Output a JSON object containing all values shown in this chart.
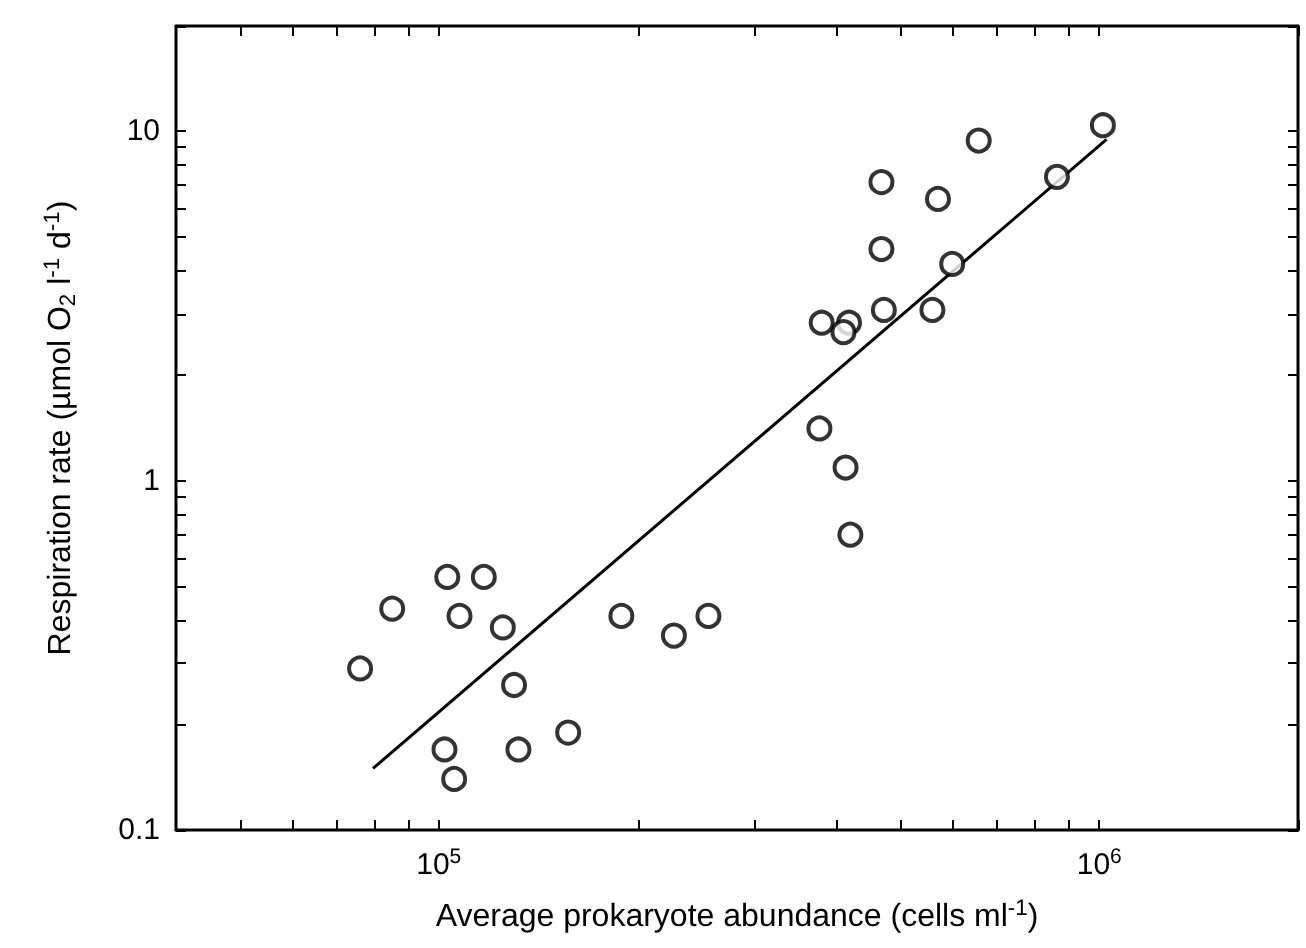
{
  "chart_data": {
    "type": "scatter",
    "xlabel": "Average prokaryote abundance (cells ml$^{-1}$)",
    "ylabel": "Respiration rate (µmol O$_{2}$ l$^{-1}$ d$^{-1}$)",
    "log": "xy",
    "marker": "circle",
    "grid": false,
    "xlim": [
      40000,
      2000000
    ],
    "xticks": [
      {
        "value": 50000,
        "label": null
      },
      {
        "value": 60000,
        "label": null
      },
      {
        "value": 70000,
        "label": null
      },
      {
        "value": 80000,
        "label": null
      },
      {
        "value": 90000,
        "label": null
      },
      {
        "value": 100000,
        "label": "10$^{5}$"
      },
      {
        "value": 200000,
        "label": null
      },
      {
        "value": 300000,
        "label": null
      },
      {
        "value": 400000,
        "label": null
      },
      {
        "value": 500000,
        "label": null
      },
      {
        "value": 600000,
        "label": null
      },
      {
        "value": 700000,
        "label": null
      },
      {
        "value": 800000,
        "label": null
      },
      {
        "value": 900000,
        "label": null
      },
      {
        "value": 1000000,
        "label": "10$^{6}$"
      },
      {
        "value": 2000000,
        "label": null
      }
    ],
    "ylim": [
      0.1,
      20
    ],
    "yticks": [
      0.1,
      {
        "value": 0.2,
        "label": null
      },
      {
        "value": 0.3,
        "label": null
      },
      {
        "value": 0.4,
        "label": null
      },
      {
        "value": 0.5,
        "label": null
      },
      {
        "value": 0.6,
        "label": null
      },
      {
        "value": 0.7,
        "label": null
      },
      {
        "value": 0.8,
        "label": null
      },
      {
        "value": 0.9,
        "label": null
      },
      1,
      {
        "value": 2,
        "label": null
      },
      {
        "value": 3,
        "label": null
      },
      {
        "value": 4,
        "label": null
      },
      {
        "value": 5,
        "label": null
      },
      {
        "value": 6,
        "label": null
      },
      {
        "value": 7,
        "label": null
      },
      {
        "value": 8,
        "label": null
      },
      {
        "value": 9,
        "label": null
      },
      10,
      {
        "value": 20,
        "label": null
      }
    ],
    "series": [
      {
        "color": "#000000",
        "x": [
          76000,
          85000,
          103000,
          117000,
          107500,
          125000,
          130000,
          102000,
          105500,
          132000,
          157000,
          189000,
          227000,
          256000,
          377000,
          413000,
          420000,
          380000,
          418000,
          410000,
          468000,
          468000,
          472000,
          559000,
          570000,
          599000,
          657000,
          863000,
          1013000
        ],
        "values": [
          0.29,
          0.43,
          0.53,
          0.53,
          0.41,
          0.38,
          0.26,
          0.17,
          0.14,
          0.17,
          0.19,
          0.41,
          0.36,
          0.41,
          1.41,
          1.09,
          0.7,
          2.83,
          2.83,
          2.66,
          7.15,
          4.6,
          3.08,
          3.08,
          6.4,
          4.17,
          9.4,
          7.4,
          10.4
        ]
      },
      {
        "type": "line",
        "color": "#000000",
        "marker": "none",
        "x": [
          79500,
          1026000
        ],
        "values": [
          0.15,
          9.47
        ]
      }
    ]
  }
}
